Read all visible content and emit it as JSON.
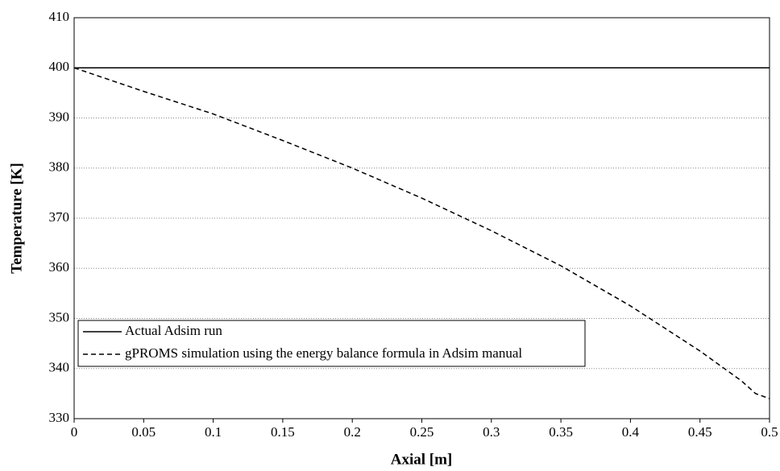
{
  "chart_data": {
    "type": "line",
    "x_label": "Axial [m]",
    "y_label": "Temperature [K]",
    "xlim": [
      0,
      0.5
    ],
    "xticks": [
      0,
      0.05,
      0.1,
      0.15,
      0.2,
      0.25,
      0.3,
      0.35,
      0.4,
      0.45,
      0.5
    ],
    "ylim": [
      330,
      410
    ],
    "yticks": [
      330,
      340,
      350,
      360,
      370,
      380,
      390,
      400,
      410
    ],
    "grid": true,
    "legend": "lower left",
    "series": [
      {
        "name": "Actual Adsim run",
        "color": "#000000",
        "dash": "solid",
        "x": [
          0,
          0.5
        ],
        "values": [
          400,
          400
        ]
      },
      {
        "name": "gPROMS simulation using the energy balance formula in Adsim manual",
        "color": "#000000",
        "dash": "dashed",
        "x": [
          0,
          0.05,
          0.1,
          0.15,
          0.2,
          0.25,
          0.3,
          0.35,
          0.4,
          0.45,
          0.48,
          0.49,
          0.5
        ],
        "values": [
          400,
          395.3,
          390.8,
          385.5,
          380,
          374,
          367.5,
          360.5,
          352.5,
          343.5,
          337.5,
          335,
          334
        ]
      }
    ]
  }
}
